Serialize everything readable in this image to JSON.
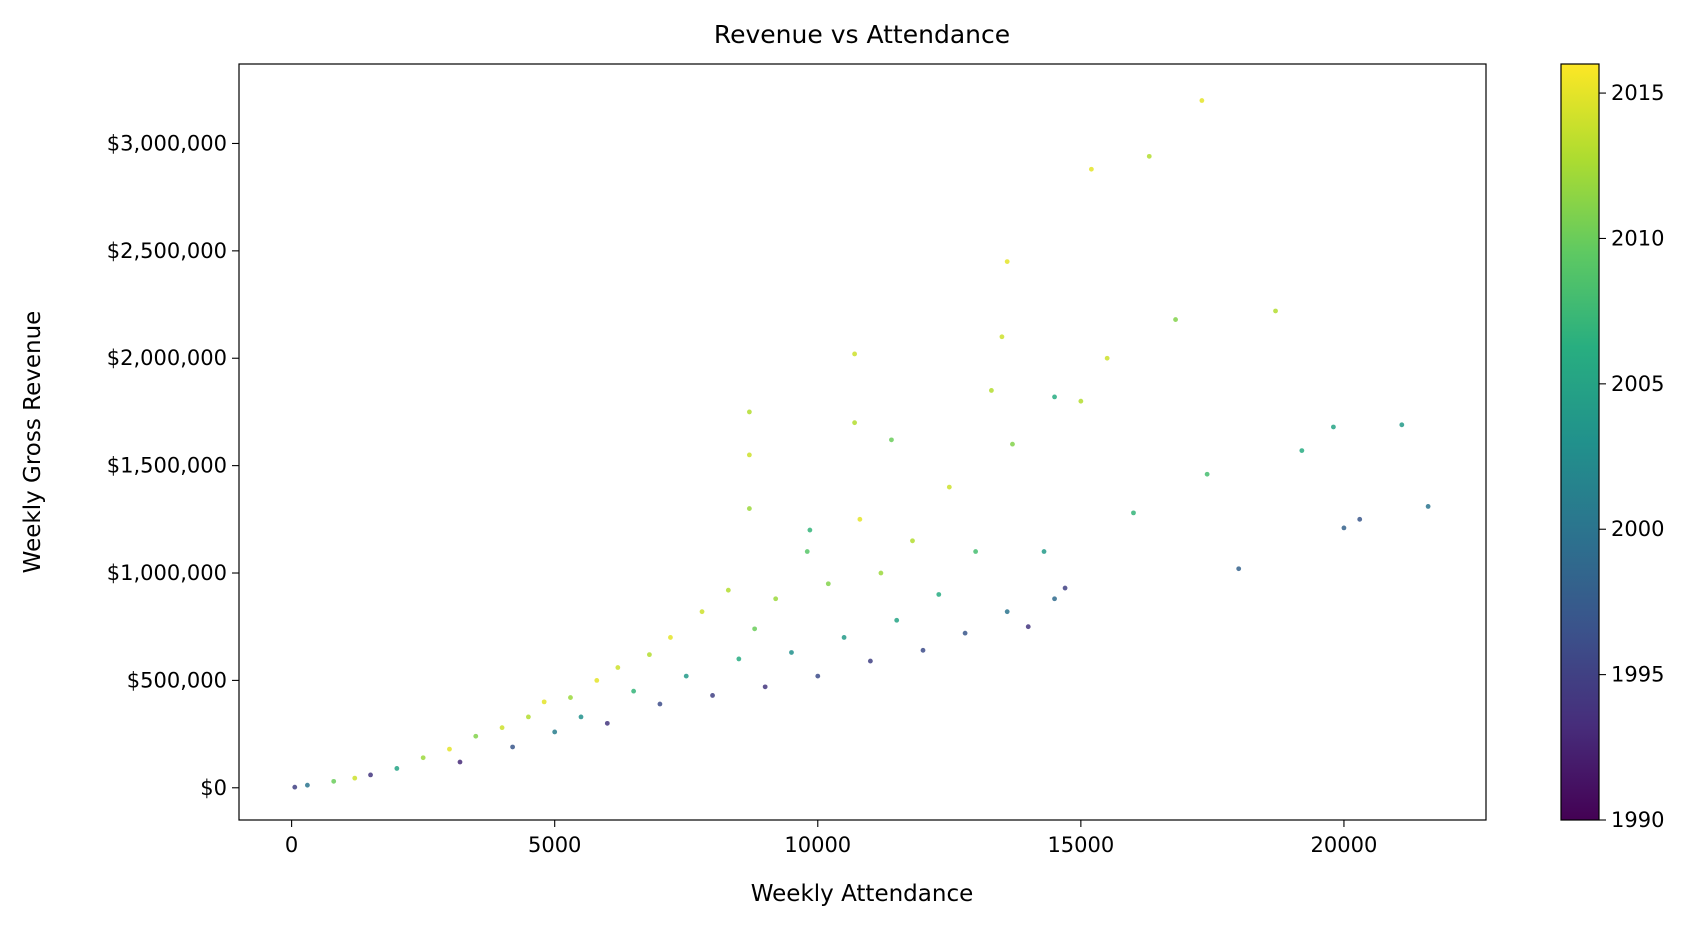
{
  "chart_data": {
    "type": "scatter",
    "title": "Revenue vs Attendance",
    "xlabel": "Weekly Attendance",
    "ylabel": "Weekly Gross Revenue",
    "xlim": [
      -1000,
      22700
    ],
    "ylim": [
      -150000,
      3370000
    ],
    "x_ticks": [
      {
        "value": 0,
        "label": "0"
      },
      {
        "value": 5000,
        "label": "5000"
      },
      {
        "value": 10000,
        "label": "10000"
      },
      {
        "value": 15000,
        "label": "15000"
      },
      {
        "value": 20000,
        "label": "20000"
      }
    ],
    "y_ticks": [
      {
        "value": 0,
        "label": "$0"
      },
      {
        "value": 500000,
        "label": "$500,000"
      },
      {
        "value": 1000000,
        "label": "$1,000,000"
      },
      {
        "value": 1500000,
        "label": "$1,500,000"
      },
      {
        "value": 2000000,
        "label": "$2,000,000"
      },
      {
        "value": 2500000,
        "label": "$2,500,000"
      },
      {
        "value": 3000000,
        "label": "$3,000,000"
      }
    ],
    "colorbar": {
      "label": "",
      "range": [
        1990,
        2016
      ],
      "colormap": "viridis",
      "colormap_stops": [
        "#440154",
        "#472d7b",
        "#3b528b",
        "#2c728e",
        "#21918c",
        "#28ae80",
        "#5ec962",
        "#addc30",
        "#fde725"
      ],
      "ticks": [
        {
          "value": 1990,
          "label": "1990"
        },
        {
          "value": 1995,
          "label": "1995"
        },
        {
          "value": 2000,
          "label": "2000"
        },
        {
          "value": 2005,
          "label": "2005"
        },
        {
          "value": 2010,
          "label": "2010"
        },
        {
          "value": 2015,
          "label": "2015"
        }
      ]
    },
    "grid": false,
    "legend": "none",
    "series": [
      {
        "color_by": "year",
        "points": [
          [
            60,
            3000,
            1995
          ],
          [
            300,
            12000,
            2000
          ],
          [
            800,
            30000,
            2010
          ],
          [
            1200,
            45000,
            2014
          ],
          [
            1500,
            60000,
            1994
          ],
          [
            2000,
            90000,
            2005
          ],
          [
            2500,
            140000,
            2012
          ],
          [
            3000,
            180000,
            2015
          ],
          [
            3200,
            120000,
            1993
          ],
          [
            3500,
            240000,
            2011
          ],
          [
            4000,
            280000,
            2014
          ],
          [
            4200,
            190000,
            1997
          ],
          [
            4500,
            330000,
            2013
          ],
          [
            4800,
            400000,
            2015
          ],
          [
            5000,
            260000,
            2001
          ],
          [
            5300,
            420000,
            2012
          ],
          [
            5500,
            330000,
            2003
          ],
          [
            5800,
            500000,
            2015
          ],
          [
            6000,
            300000,
            1994
          ],
          [
            6200,
            560000,
            2014
          ],
          [
            6500,
            450000,
            2007
          ],
          [
            6800,
            620000,
            2013
          ],
          [
            7000,
            390000,
            1996
          ],
          [
            7200,
            700000,
            2015
          ],
          [
            7500,
            520000,
            2004
          ],
          [
            7800,
            820000,
            2014
          ],
          [
            8000,
            430000,
            1995
          ],
          [
            8300,
            920000,
            2013
          ],
          [
            8500,
            600000,
            2006
          ],
          [
            8700,
            1550000,
            2014
          ],
          [
            8700,
            1750000,
            2013
          ],
          [
            8700,
            1300000,
            2012
          ],
          [
            8800,
            740000,
            2010
          ],
          [
            9000,
            470000,
            1994
          ],
          [
            9200,
            880000,
            2012
          ],
          [
            9500,
            630000,
            2003
          ],
          [
            9800,
            1100000,
            2009
          ],
          [
            9850,
            1200000,
            2007
          ],
          [
            10000,
            520000,
            1996
          ],
          [
            10200,
            950000,
            2011
          ],
          [
            10500,
            700000,
            2004
          ],
          [
            10700,
            2020000,
            2014
          ],
          [
            10700,
            1700000,
            2013
          ],
          [
            10800,
            1250000,
            2015
          ],
          [
            11000,
            590000,
            1995
          ],
          [
            11200,
            1000000,
            2012
          ],
          [
            11400,
            1620000,
            2010
          ],
          [
            11500,
            780000,
            2005
          ],
          [
            11800,
            1150000,
            2013
          ],
          [
            12000,
            640000,
            1996
          ],
          [
            12300,
            900000,
            2006
          ],
          [
            12500,
            1400000,
            2014
          ],
          [
            12800,
            720000,
            1997
          ],
          [
            13000,
            1100000,
            2008
          ],
          [
            13300,
            1850000,
            2013
          ],
          [
            13500,
            2100000,
            2014
          ],
          [
            13600,
            2450000,
            2015
          ],
          [
            13600,
            820000,
            2000
          ],
          [
            13700,
            1600000,
            2011
          ],
          [
            14000,
            750000,
            1994
          ],
          [
            14300,
            1100000,
            2004
          ],
          [
            14500,
            1820000,
            2006
          ],
          [
            14500,
            880000,
            1999
          ],
          [
            14700,
            930000,
            1995
          ],
          [
            15000,
            1800000,
            2013
          ],
          [
            15200,
            2880000,
            2015
          ],
          [
            15500,
            2000000,
            2014
          ],
          [
            16000,
            1280000,
            2007
          ],
          [
            16300,
            2940000,
            2013
          ],
          [
            16800,
            2180000,
            2011
          ],
          [
            17300,
            3200000,
            2015
          ],
          [
            17400,
            1460000,
            2008
          ],
          [
            18000,
            1020000,
            1998
          ],
          [
            18700,
            2220000,
            2013
          ],
          [
            19200,
            1570000,
            2006
          ],
          [
            19800,
            1680000,
            2005
          ],
          [
            20000,
            1210000,
            1998
          ],
          [
            20300,
            1250000,
            1997
          ],
          [
            21100,
            1690000,
            2004
          ],
          [
            21600,
            1310000,
            2000
          ]
        ]
      }
    ]
  }
}
